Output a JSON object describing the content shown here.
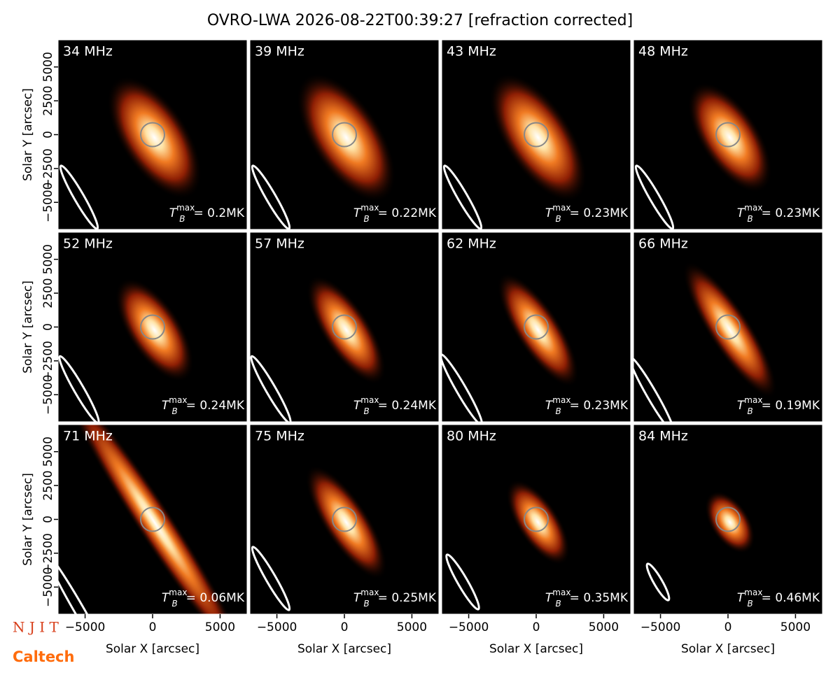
{
  "chart_data": {
    "type": "heatmap",
    "title": "OVRO-LWA 2026-08-22T00:39:27 [refraction corrected]",
    "xlabel": "Solar X [arcsec]",
    "ylabel": "Solar Y [arcsec]",
    "xlim": [
      -7000,
      7000
    ],
    "ylim": [
      -7000,
      7000
    ],
    "xticks": [
      {
        "value": -5000,
        "label": "−5000"
      },
      0,
      5000
    ],
    "yticks": [
      {
        "value": -5000,
        "label": "−5000"
      },
      {
        "value": -2500,
        "label": "−2500"
      },
      0,
      2500,
      5000
    ],
    "tb_symbol": "T",
    "tb_sub": "B",
    "tb_sup": "max",
    "panels": [
      {
        "label": "34 MHz",
        "tb_max": "= 0.2MK"
      },
      {
        "label": "39 MHz",
        "tb_max": "= 0.22MK"
      },
      {
        "label": "43 MHz",
        "tb_max": "= 0.23MK"
      },
      {
        "label": "48 MHz",
        "tb_max": "= 0.23MK"
      },
      {
        "label": "52 MHz",
        "tb_max": "= 0.24MK"
      },
      {
        "label": "57 MHz",
        "tb_max": "= 0.24MK"
      },
      {
        "label": "62 MHz",
        "tb_max": "= 0.23MK"
      },
      {
        "label": "66 MHz",
        "tb_max": "= 0.19MK"
      },
      {
        "label": "71 MHz",
        "tb_max": "= 0.06MK"
      },
      {
        "label": "75 MHz",
        "tb_max": "= 0.25MK"
      },
      {
        "label": "80 MHz",
        "tb_max": "= 0.35MK"
      },
      {
        "label": "84 MHz",
        "tb_max": "= 0.46MK"
      }
    ],
    "logos": [
      "N J I T",
      "Caltech"
    ]
  }
}
